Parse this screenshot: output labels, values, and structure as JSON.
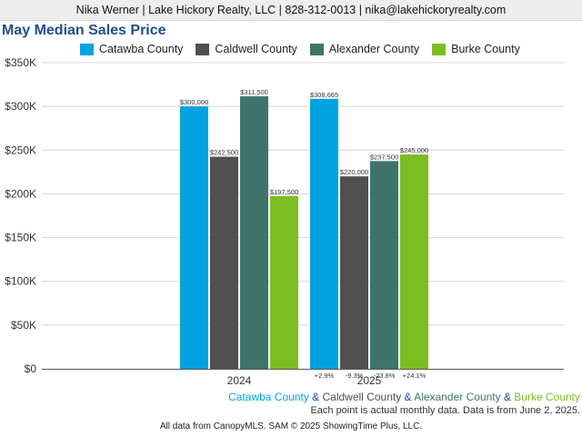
{
  "header": {
    "contact": "Nika Werner | Lake Hickory Realty, LLC | 828-312-0013 | nika@lakehickoryrealty.com"
  },
  "chart_data": {
    "type": "bar",
    "title": "May Median Sales Price",
    "categories": [
      "2024",
      "2025"
    ],
    "series": [
      {
        "name": "Catawba County",
        "color": "#00a3e0",
        "values": [
          300000,
          308665
        ],
        "labels": [
          "$300,000",
          "$308,665"
        ]
      },
      {
        "name": "Caldwell County",
        "color": "#505050",
        "values": [
          242500,
          220000
        ],
        "labels": [
          "$242,500",
          "$220,000"
        ]
      },
      {
        "name": "Alexander County",
        "color": "#3e7469",
        "values": [
          311500,
          237500
        ],
        "labels": [
          "$311,500",
          "$237,500"
        ]
      },
      {
        "name": "Burke County",
        "color": "#7dbd21",
        "values": [
          197500,
          245000
        ],
        "labels": [
          "$197,500",
          "$245,000"
        ]
      }
    ],
    "changes": [
      "+2.9%",
      "-9.3%",
      "-23.8%",
      "+24.1%"
    ],
    "ylim": [
      0,
      350000
    ],
    "yticks": [
      0,
      50000,
      100000,
      150000,
      200000,
      250000,
      300000,
      350000
    ],
    "ytick_labels": [
      "$0",
      "$50K",
      "$100K",
      "$150K",
      "$200K",
      "$250K",
      "$300K",
      "$350K"
    ],
    "grid": true,
    "legend": "top"
  },
  "caption": {
    "parts": [
      {
        "text": "Catawba County",
        "color": "#00a3e0"
      },
      {
        "text": " & ",
        "color": "#1f4e8c"
      },
      {
        "text": "Caldwell County",
        "color": "#505050"
      },
      {
        "text": " & ",
        "color": "#1f4e8c"
      },
      {
        "text": "Alexander County",
        "color": "#3e7469"
      },
      {
        "text": " & ",
        "color": "#1f4e8c"
      },
      {
        "text": "Burke County",
        "color": "#7dbd21"
      }
    ]
  },
  "note": "Each point is actual monthly data. Data is from June 2, 2025.",
  "footer": "All data from CanopyMLS. SAM © 2025 ShowingTime Plus, LLC."
}
